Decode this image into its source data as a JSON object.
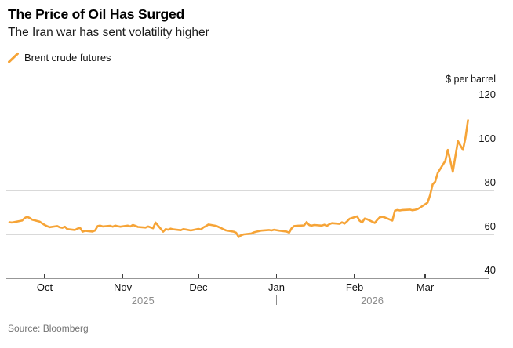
{
  "header": {
    "title": "The Price of Oil Has Surged",
    "subtitle": "The Iran war has sent volatility higher"
  },
  "legend": {
    "label": "Brent crude futures"
  },
  "footer": {
    "source": "Source: Bloomberg"
  },
  "colors": {
    "line": "#F6A437",
    "grid": "#D9D9D9",
    "axis": "#979797",
    "tick": "#3D3D3D",
    "year_text": "#8C8C8C",
    "source_text": "#757575"
  },
  "chart_data": {
    "type": "line",
    "title": "The Price of Oil Has Surged",
    "subtitle": "The Iran war has sent volatility higher",
    "unit_label": "$ per barrel",
    "ylabel": "$ per barrel",
    "ylim": [
      40,
      120
    ],
    "y_ticks": [
      40,
      60,
      80,
      100,
      120
    ],
    "grid": "horizontal",
    "legend_position": "top-left",
    "x_ticks": [
      {
        "date": "2025-10-01",
        "label": "Oct"
      },
      {
        "date": "2025-11-01",
        "label": "Nov"
      },
      {
        "date": "2025-12-01",
        "label": "Dec"
      },
      {
        "date": "2026-01-01",
        "label": "Jan"
      },
      {
        "date": "2026-02-01",
        "label": "Feb"
      },
      {
        "date": "2026-03-01",
        "label": "Mar"
      }
    ],
    "year_labels": [
      "2025",
      "2026"
    ],
    "year_divider_date": "2026-01-01",
    "series": [
      {
        "name": "Brent crude futures",
        "color": "#F6A437",
        "points": [
          [
            "2025-09-17",
            65.5
          ],
          [
            "2025-09-18",
            65.4
          ],
          [
            "2025-09-19",
            65.6
          ],
          [
            "2025-09-22",
            66.3
          ],
          [
            "2025-09-23",
            67.4
          ],
          [
            "2025-09-24",
            68.0
          ],
          [
            "2025-09-25",
            67.5
          ],
          [
            "2025-09-26",
            66.7
          ],
          [
            "2025-09-29",
            65.8
          ],
          [
            "2025-09-30",
            65.0
          ],
          [
            "2025-10-01",
            64.3
          ],
          [
            "2025-10-02",
            63.7
          ],
          [
            "2025-10-03",
            63.3
          ],
          [
            "2025-10-06",
            63.8
          ],
          [
            "2025-10-07",
            63.2
          ],
          [
            "2025-10-08",
            63.0
          ],
          [
            "2025-10-09",
            63.5
          ],
          [
            "2025-10-10",
            62.4
          ],
          [
            "2025-10-13",
            62.0
          ],
          [
            "2025-10-14",
            62.6
          ],
          [
            "2025-10-15",
            63.0
          ],
          [
            "2025-10-16",
            61.2
          ],
          [
            "2025-10-17",
            61.6
          ],
          [
            "2025-10-20",
            61.3
          ],
          [
            "2025-10-21",
            61.8
          ],
          [
            "2025-10-22",
            63.8
          ],
          [
            "2025-10-23",
            64.0
          ],
          [
            "2025-10-24",
            63.6
          ],
          [
            "2025-10-27",
            63.9
          ],
          [
            "2025-10-28",
            63.5
          ],
          [
            "2025-10-29",
            64.0
          ],
          [
            "2025-10-30",
            63.7
          ],
          [
            "2025-10-31",
            63.5
          ],
          [
            "2025-11-03",
            64.0
          ],
          [
            "2025-11-04",
            63.6
          ],
          [
            "2025-11-05",
            64.3
          ],
          [
            "2025-11-06",
            63.9
          ],
          [
            "2025-11-07",
            63.4
          ],
          [
            "2025-11-10",
            63.1
          ],
          [
            "2025-11-11",
            63.6
          ],
          [
            "2025-11-12",
            63.2
          ],
          [
            "2025-11-13",
            62.8
          ],
          [
            "2025-11-14",
            65.4
          ],
          [
            "2025-11-17",
            61.2
          ],
          [
            "2025-11-18",
            62.4
          ],
          [
            "2025-11-19",
            62.1
          ],
          [
            "2025-11-20",
            62.6
          ],
          [
            "2025-11-21",
            62.3
          ],
          [
            "2025-11-24",
            61.9
          ],
          [
            "2025-11-25",
            62.4
          ],
          [
            "2025-11-26",
            62.2
          ],
          [
            "2025-11-28",
            61.8
          ],
          [
            "2025-12-01",
            62.5
          ],
          [
            "2025-12-02",
            62.2
          ],
          [
            "2025-12-03",
            63.2
          ],
          [
            "2025-12-04",
            63.8
          ],
          [
            "2025-12-05",
            64.5
          ],
          [
            "2025-12-08",
            63.9
          ],
          [
            "2025-12-09",
            63.4
          ],
          [
            "2025-12-10",
            62.9
          ],
          [
            "2025-12-11",
            62.3
          ],
          [
            "2025-12-12",
            61.8
          ],
          [
            "2025-12-15",
            61.2
          ],
          [
            "2025-12-16",
            60.7
          ],
          [
            "2025-12-17",
            58.8
          ],
          [
            "2025-12-18",
            59.6
          ],
          [
            "2025-12-19",
            60.0
          ],
          [
            "2025-12-22",
            60.4
          ],
          [
            "2025-12-23",
            60.9
          ],
          [
            "2025-12-24",
            61.2
          ],
          [
            "2025-12-26",
            61.7
          ],
          [
            "2025-12-29",
            62.0
          ],
          [
            "2025-12-30",
            61.8
          ],
          [
            "2025-12-31",
            62.1
          ],
          [
            "2026-01-02",
            61.7
          ],
          [
            "2026-01-05",
            61.3
          ],
          [
            "2026-01-06",
            60.8
          ],
          [
            "2026-01-07",
            62.8
          ],
          [
            "2026-01-08",
            63.8
          ],
          [
            "2026-01-09",
            63.9
          ],
          [
            "2026-01-12",
            64.1
          ],
          [
            "2026-01-13",
            65.6
          ],
          [
            "2026-01-14",
            64.2
          ],
          [
            "2026-01-15",
            64.0
          ],
          [
            "2026-01-16",
            64.3
          ],
          [
            "2026-01-19",
            64.0
          ],
          [
            "2026-01-20",
            64.4
          ],
          [
            "2026-01-21",
            63.9
          ],
          [
            "2026-01-22",
            64.6
          ],
          [
            "2026-01-23",
            65.1
          ],
          [
            "2026-01-26",
            64.8
          ],
          [
            "2026-01-27",
            65.5
          ],
          [
            "2026-01-28",
            64.9
          ],
          [
            "2026-01-29",
            65.9
          ],
          [
            "2026-01-30",
            67.1
          ],
          [
            "2026-02-02",
            68.2
          ],
          [
            "2026-02-03",
            66.2
          ],
          [
            "2026-02-04",
            65.4
          ],
          [
            "2026-02-05",
            67.2
          ],
          [
            "2026-02-06",
            66.9
          ],
          [
            "2026-02-09",
            65.2
          ],
          [
            "2026-02-10",
            66.6
          ],
          [
            "2026-02-11",
            67.8
          ],
          [
            "2026-02-12",
            68.0
          ],
          [
            "2026-02-13",
            67.7
          ],
          [
            "2026-02-16",
            66.3
          ],
          [
            "2026-02-17",
            70.8
          ],
          [
            "2026-02-18",
            71.1
          ],
          [
            "2026-02-19",
            70.9
          ],
          [
            "2026-02-20",
            71.1
          ],
          [
            "2026-02-23",
            71.3
          ],
          [
            "2026-02-24",
            71.0
          ],
          [
            "2026-02-25",
            71.2
          ],
          [
            "2026-02-26",
            71.5
          ],
          [
            "2026-02-27",
            72.2
          ],
          [
            "2026-03-02",
            74.5
          ],
          [
            "2026-03-03",
            78.0
          ],
          [
            "2026-03-04",
            82.8
          ],
          [
            "2026-03-05",
            84.0
          ],
          [
            "2026-03-06",
            88.0
          ],
          [
            "2026-03-09",
            93.5
          ],
          [
            "2026-03-10",
            98.5
          ],
          [
            "2026-03-12",
            88.5
          ],
          [
            "2026-03-13",
            95.5
          ],
          [
            "2026-03-14",
            102.5
          ],
          [
            "2026-03-16",
            98.5
          ],
          [
            "2026-03-17",
            104.0
          ],
          [
            "2026-03-18",
            112.0
          ]
        ]
      }
    ]
  }
}
